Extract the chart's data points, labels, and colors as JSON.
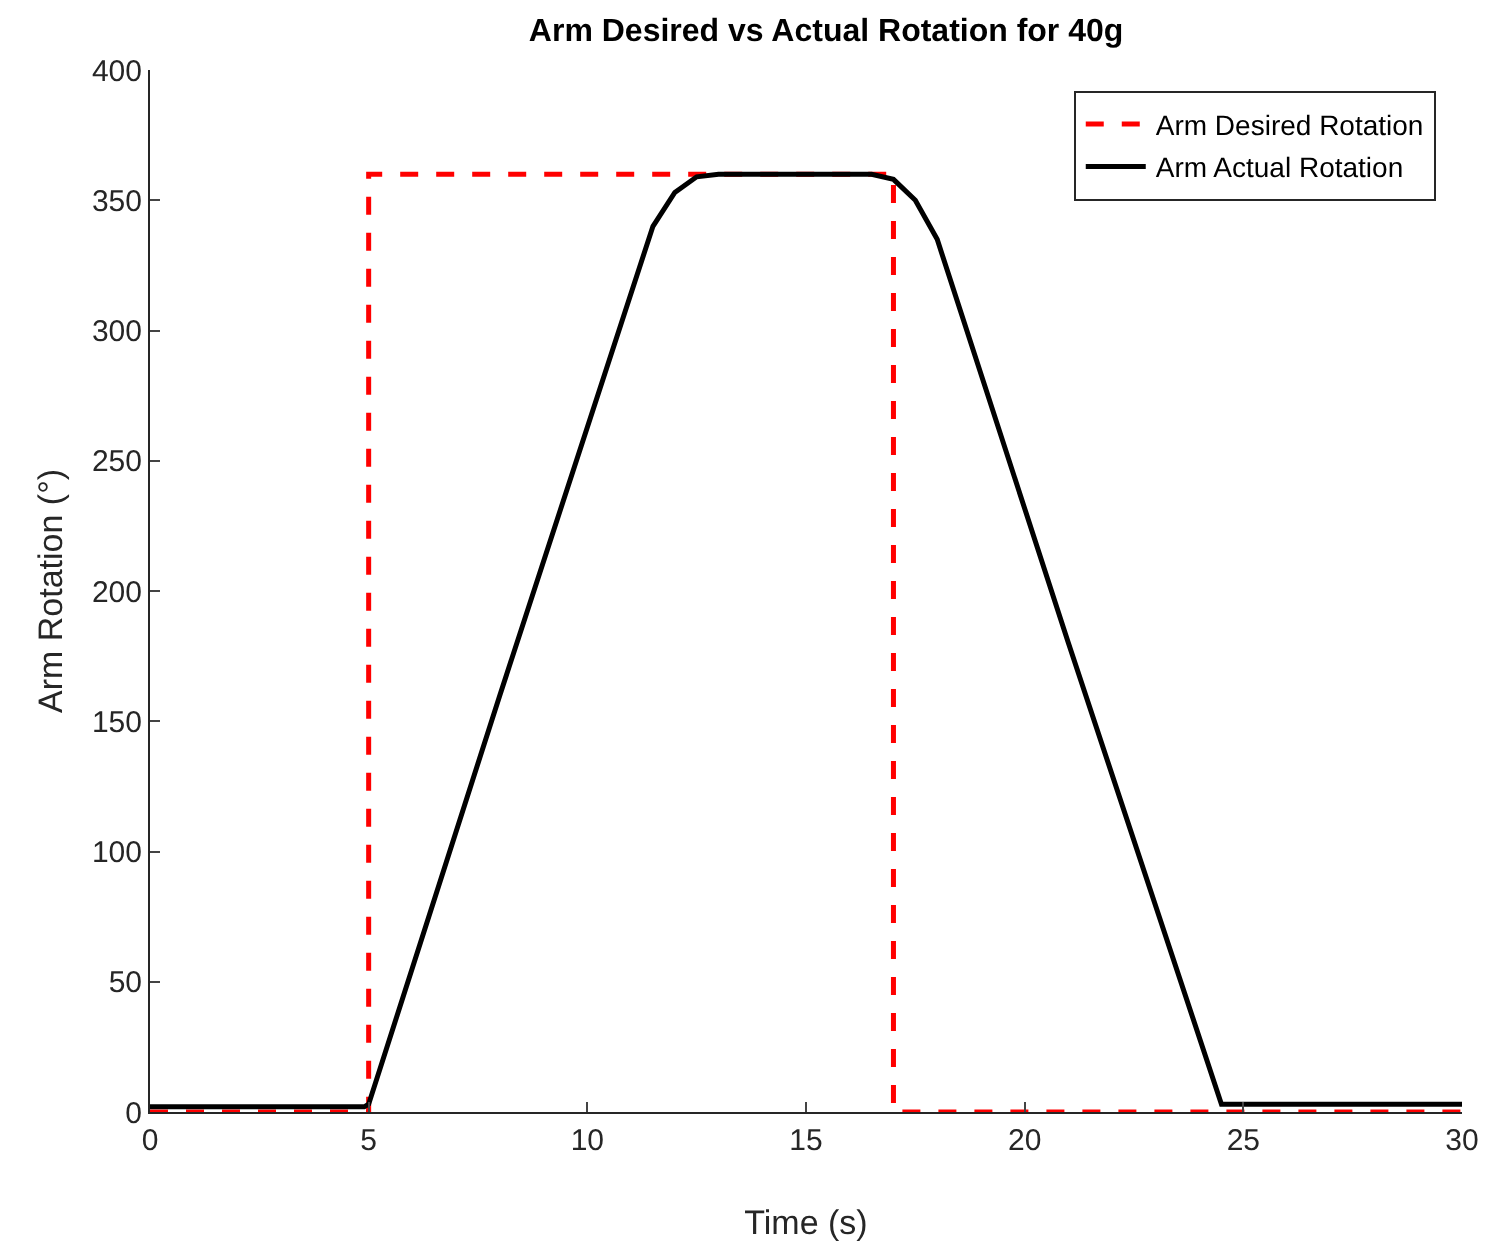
{
  "chart_data": {
    "type": "line",
    "title": "Arm Desired vs Actual Rotation for 40g",
    "xlabel": "Time (s)",
    "ylabel": "Arm Rotation (°)",
    "xlim": [
      0,
      30
    ],
    "xticks": [
      0,
      5,
      10,
      15,
      20,
      25,
      30
    ],
    "ylim": [
      0,
      400
    ],
    "yticks": [
      0,
      50,
      100,
      150,
      200,
      250,
      300,
      350,
      400
    ],
    "grid": false,
    "legend": "top right",
    "marker": "none",
    "series": [
      {
        "name": "Arm Desired Rotation",
        "color": "#ff0000",
        "line_style": "dashed",
        "x": [
          0,
          5,
          5,
          17,
          17,
          30
        ],
        "values": [
          0,
          0,
          360,
          360,
          0,
          0
        ]
      },
      {
        "name": "Arm Actual Rotation",
        "color": "#000000",
        "line_style": "solid",
        "x": [
          0,
          2,
          4.9,
          5,
          8,
          11.5,
          12,
          12.5,
          13,
          16.5,
          17,
          17.5,
          18,
          21,
          24.5,
          25,
          27,
          30
        ],
        "values": [
          2,
          2,
          2,
          3,
          160,
          340,
          353,
          359,
          360,
          360,
          358,
          350,
          335,
          180,
          3,
          3,
          3,
          3
        ]
      }
    ]
  }
}
